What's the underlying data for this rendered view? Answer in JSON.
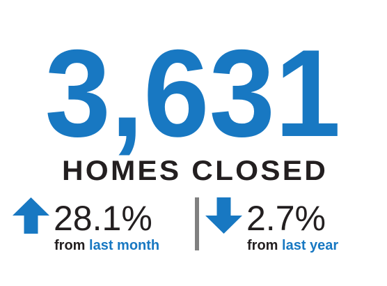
{
  "headline": {
    "value": "3,631",
    "label": "HOMES CLOSED"
  },
  "stats": [
    {
      "direction": "up",
      "change": "28.1%",
      "prefix": "from",
      "period": "last month"
    },
    {
      "direction": "down",
      "change": "2.7%",
      "prefix": "from",
      "period": "last year"
    }
  ]
}
